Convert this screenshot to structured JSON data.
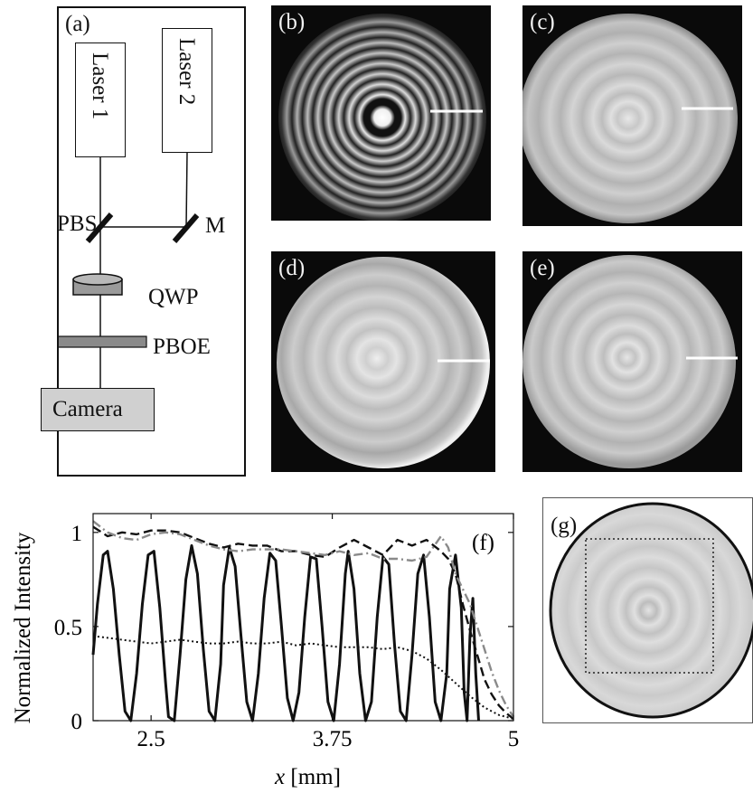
{
  "panels": {
    "a": {
      "label": "(a)",
      "laser1": "Laser 1",
      "laser2": "Laser 2",
      "pbs": "PBS",
      "mirror": "M",
      "qwp": "QWP",
      "pboe": "PBOE",
      "camera": "Camera"
    },
    "b": {
      "label": "(b)"
    },
    "c": {
      "label": "(c)"
    },
    "d": {
      "label": "(d)"
    },
    "e": {
      "label": "(e)"
    },
    "g": {
      "label": "(g)"
    }
  },
  "colors": {
    "panel_background": "#0a0a0a",
    "camera_fill": "#d0d0d0",
    "optic_fill": "#9a9a9a",
    "profile_line": "#ffffff"
  },
  "chart_data": {
    "type": "line",
    "panel_label": "(f)",
    "xlabel_var": "x",
    "xlabel_unit": " [mm]",
    "ylabel": "Normalized Intensity",
    "xlim": [
      2.1,
      5.0
    ],
    "ylim": [
      0,
      1.1
    ],
    "xticks": [
      2.5,
      3.75,
      5
    ],
    "xtick_labels": [
      "2.5",
      "3.75",
      "5"
    ],
    "yticks": [
      0,
      0.5,
      1
    ],
    "ytick_labels": [
      "0",
      "0.5",
      "1"
    ],
    "series": [
      {
        "style": "solid",
        "color": "#111111",
        "x": [
          2.1,
          2.13,
          2.17,
          2.2,
          2.24,
          2.28,
          2.32,
          2.36,
          2.4,
          2.44,
          2.48,
          2.52,
          2.56,
          2.6,
          2.62,
          2.66,
          2.7,
          2.74,
          2.78,
          2.82,
          2.86,
          2.9,
          2.94,
          2.98,
          3.0,
          3.04,
          3.08,
          3.12,
          3.16,
          3.2,
          3.24,
          3.28,
          3.32,
          3.36,
          3.4,
          3.44,
          3.48,
          3.52,
          3.56,
          3.6,
          3.64,
          3.68,
          3.72,
          3.76,
          3.8,
          3.84,
          3.86,
          3.9,
          3.94,
          3.98,
          4.02,
          4.06,
          4.1,
          4.14,
          4.18,
          4.22,
          4.26,
          4.3,
          4.34,
          4.38,
          4.42,
          4.46,
          4.5,
          4.54,
          4.56,
          4.6,
          4.64,
          4.66,
          4.68,
          4.7,
          4.72,
          4.74,
          4.76
        ],
        "y": [
          0.35,
          0.62,
          0.88,
          0.9,
          0.7,
          0.35,
          0.05,
          0.0,
          0.25,
          0.62,
          0.88,
          0.9,
          0.6,
          0.2,
          0.02,
          0.0,
          0.35,
          0.75,
          0.93,
          0.78,
          0.38,
          0.05,
          0.0,
          0.3,
          0.72,
          0.92,
          0.82,
          0.45,
          0.1,
          0.0,
          0.25,
          0.65,
          0.89,
          0.85,
          0.5,
          0.12,
          0.0,
          0.15,
          0.55,
          0.87,
          0.86,
          0.5,
          0.1,
          0.0,
          0.3,
          0.78,
          0.9,
          0.7,
          0.25,
          0.0,
          0.1,
          0.55,
          0.87,
          0.83,
          0.4,
          0.05,
          0.0,
          0.35,
          0.78,
          0.88,
          0.55,
          0.1,
          0.0,
          0.25,
          0.7,
          0.88,
          0.6,
          0.15,
          0.0,
          0.45,
          0.65,
          0.25,
          0.0
        ]
      },
      {
        "style": "dashed",
        "color": "#111111",
        "x": [
          2.1,
          2.2,
          2.3,
          2.4,
          2.5,
          2.6,
          2.7,
          2.8,
          2.9,
          3.0,
          3.1,
          3.2,
          3.3,
          3.4,
          3.5,
          3.6,
          3.7,
          3.8,
          3.9,
          4.0,
          4.1,
          4.2,
          4.3,
          4.4,
          4.5,
          4.55,
          4.6,
          4.65,
          4.7,
          4.75,
          4.8,
          4.85,
          4.9,
          4.95,
          5.0
        ],
        "y": [
          1.03,
          0.98,
          1.0,
          0.99,
          1.01,
          1.01,
          1.0,
          0.97,
          0.94,
          0.92,
          0.94,
          0.93,
          0.93,
          0.9,
          0.9,
          0.88,
          0.87,
          0.92,
          0.96,
          0.92,
          0.88,
          0.96,
          0.93,
          0.96,
          0.9,
          0.86,
          0.78,
          0.62,
          0.48,
          0.35,
          0.22,
          0.14,
          0.08,
          0.04,
          0.01
        ]
      },
      {
        "style": "dashdot",
        "color": "#8a8a8a",
        "x": [
          2.1,
          2.2,
          2.3,
          2.4,
          2.5,
          2.6,
          2.7,
          2.8,
          2.9,
          3.0,
          3.1,
          3.2,
          3.3,
          3.4,
          3.5,
          3.6,
          3.7,
          3.8,
          3.9,
          4.0,
          4.1,
          4.2,
          4.3,
          4.4,
          4.5,
          4.55,
          4.6,
          4.65,
          4.7,
          4.75,
          4.8,
          4.85,
          4.9,
          4.95,
          5.0
        ],
        "y": [
          1.06,
          1.0,
          0.97,
          0.96,
          0.99,
          1.0,
          0.99,
          0.96,
          0.93,
          0.91,
          0.9,
          0.91,
          0.91,
          0.91,
          0.9,
          0.89,
          0.88,
          0.9,
          0.88,
          0.89,
          0.86,
          0.86,
          0.85,
          0.87,
          0.98,
          0.92,
          0.78,
          0.7,
          0.62,
          0.5,
          0.38,
          0.26,
          0.16,
          0.08,
          0.02
        ]
      },
      {
        "style": "dotted",
        "color": "#111111",
        "x": [
          2.1,
          2.2,
          2.3,
          2.4,
          2.5,
          2.6,
          2.7,
          2.8,
          2.9,
          3.0,
          3.1,
          3.2,
          3.3,
          3.4,
          3.5,
          3.6,
          3.7,
          3.8,
          3.9,
          4.0,
          4.1,
          4.2,
          4.3,
          4.4,
          4.5,
          4.6,
          4.7,
          4.8,
          4.9,
          5.0
        ],
        "y": [
          0.45,
          0.44,
          0.43,
          0.42,
          0.41,
          0.42,
          0.43,
          0.42,
          0.41,
          0.41,
          0.42,
          0.41,
          0.41,
          0.42,
          0.4,
          0.41,
          0.4,
          0.39,
          0.39,
          0.39,
          0.38,
          0.39,
          0.37,
          0.33,
          0.27,
          0.2,
          0.13,
          0.07,
          0.03,
          0.01
        ]
      }
    ]
  }
}
